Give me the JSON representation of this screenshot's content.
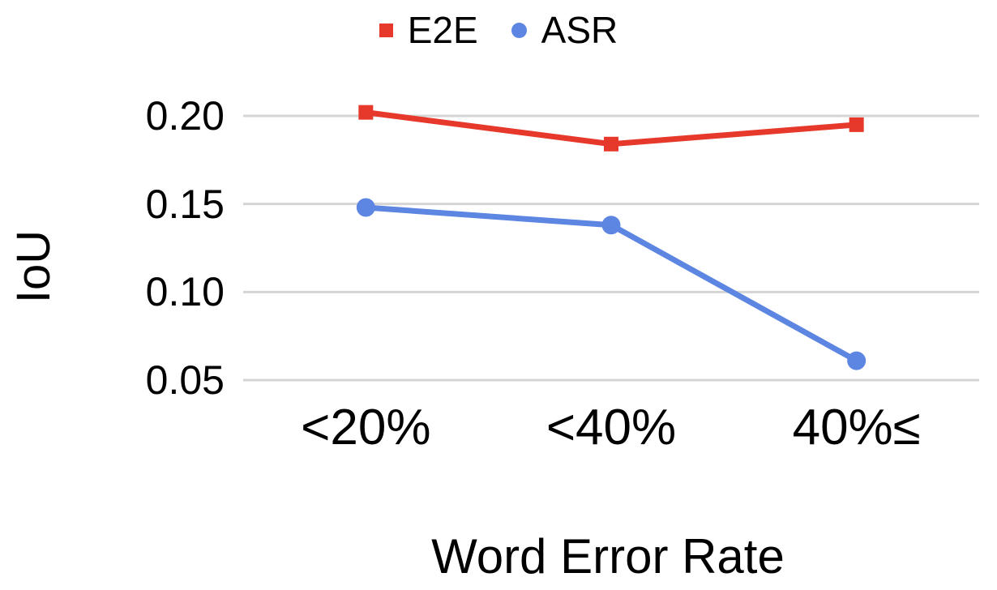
{
  "chart_data": {
    "type": "line",
    "title": "",
    "xlabel": "Word Error Rate",
    "ylabel": "IoU",
    "categories": [
      "<20%",
      "<40%",
      "40%≤"
    ],
    "series": [
      {
        "name": "E2E",
        "color": "#E6392B",
        "marker": "square",
        "values": [
          0.202,
          0.184,
          0.195
        ]
      },
      {
        "name": "ASR",
        "color": "#5C86E2",
        "marker": "circle",
        "values": [
          0.148,
          0.138,
          0.061
        ]
      }
    ],
    "y_ticks": [
      {
        "value": 0.2,
        "label": "0.20"
      },
      {
        "value": 0.15,
        "label": "0.15"
      },
      {
        "value": 0.1,
        "label": "0.10"
      },
      {
        "value": 0.05,
        "label": "0.05"
      }
    ],
    "ylim": [
      0.04,
      0.225
    ],
    "grid": "horizontal",
    "legend_position": "top-center",
    "gridline_color": "#D5D5D5",
    "text_color": "#000000",
    "background_color": "#FFFFFF"
  }
}
